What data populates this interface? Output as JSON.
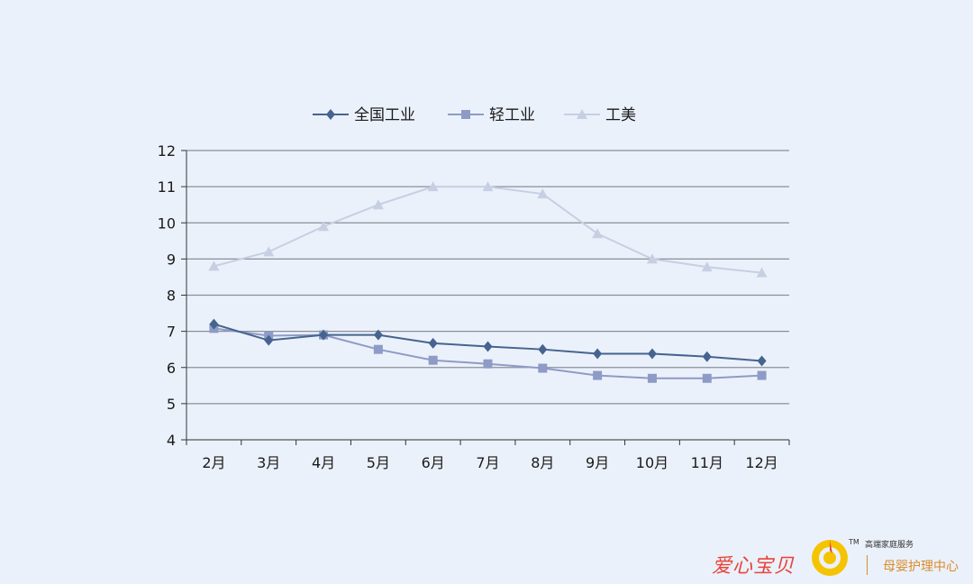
{
  "chart_data": {
    "type": "line",
    "categories": [
      "2月",
      "3月",
      "4月",
      "5月",
      "6月",
      "7月",
      "8月",
      "9月",
      "10月",
      "11月",
      "12月"
    ],
    "series": [
      {
        "name": "全国工业",
        "color": "#46648f",
        "marker": "diamond",
        "values": [
          7.2,
          6.75,
          6.9,
          6.9,
          6.67,
          6.58,
          6.5,
          6.38,
          6.38,
          6.3,
          6.18
        ]
      },
      {
        "name": "轻工业",
        "color": "#8e9bc6",
        "marker": "square",
        "values": [
          7.08,
          6.88,
          6.9,
          6.5,
          6.2,
          6.1,
          5.98,
          5.78,
          5.7,
          5.7,
          5.78
        ]
      },
      {
        "name": "工美",
        "color": "#c7cfe2",
        "marker": "triangle",
        "values": [
          8.8,
          9.2,
          9.9,
          10.5,
          11.0,
          11.0,
          10.8,
          9.7,
          9.0,
          8.78,
          8.62
        ]
      }
    ],
    "ylim": [
      4,
      12
    ],
    "yticks": [
      4,
      5,
      6,
      7,
      8,
      9,
      10,
      11,
      12
    ],
    "grid": true,
    "legend": "top-center"
  },
  "watermark": {
    "brand": "爱心宝贝",
    "tm": "TM",
    "service": "高端家庭服务",
    "sub": "母婴护理中心"
  }
}
